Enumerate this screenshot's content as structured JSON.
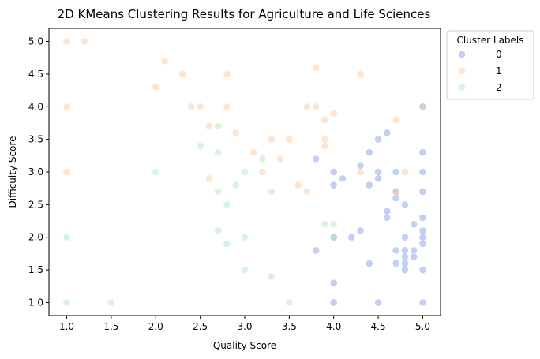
{
  "chart_data": {
    "type": "scatter",
    "title": "2D KMeans Clustering Results for Agriculture and Life Sciences",
    "xlabel": "Quality Score",
    "ylabel": "Difficulty Score",
    "xlim": [
      0.8,
      5.2
    ],
    "ylim": [
      0.8,
      5.2
    ],
    "xticks": [
      "1.0",
      "1.5",
      "2.0",
      "2.5",
      "3.0",
      "3.5",
      "4.0",
      "4.5",
      "5.0"
    ],
    "yticks": [
      "1.0",
      "1.5",
      "2.0",
      "2.5",
      "3.0",
      "3.5",
      "4.0",
      "4.5",
      "5.0"
    ],
    "grid": false,
    "legend": {
      "title": "Cluster Labels",
      "placement": "outside-top-right"
    },
    "series": [
      {
        "name": "0",
        "color": "#7b96ea",
        "points": [
          [
            3.8,
            3.2
          ],
          [
            3.8,
            1.8
          ],
          [
            4.0,
            3.0
          ],
          [
            4.0,
            2.8
          ],
          [
            4.0,
            2.0
          ],
          [
            4.0,
            1.3
          ],
          [
            4.0,
            1.0
          ],
          [
            4.1,
            2.9
          ],
          [
            4.2,
            2.0
          ],
          [
            4.3,
            3.1
          ],
          [
            4.3,
            2.1
          ],
          [
            4.4,
            3.3
          ],
          [
            4.4,
            2.8
          ],
          [
            4.4,
            1.6
          ],
          [
            4.5,
            3.5
          ],
          [
            4.5,
            3.0
          ],
          [
            4.5,
            2.9
          ],
          [
            4.5,
            1.0
          ],
          [
            4.6,
            3.6
          ],
          [
            4.6,
            2.4
          ],
          [
            4.6,
            2.3
          ],
          [
            4.7,
            3.0
          ],
          [
            4.7,
            2.7
          ],
          [
            4.7,
            2.6
          ],
          [
            4.7,
            1.8
          ],
          [
            4.7,
            1.6
          ],
          [
            4.8,
            2.5
          ],
          [
            4.8,
            2.0
          ],
          [
            4.8,
            1.8
          ],
          [
            4.8,
            1.7
          ],
          [
            4.8,
            1.6
          ],
          [
            4.8,
            1.5
          ],
          [
            4.9,
            2.2
          ],
          [
            4.9,
            1.8
          ],
          [
            4.9,
            1.7
          ],
          [
            5.0,
            4.0
          ],
          [
            5.0,
            3.3
          ],
          [
            5.0,
            3.0
          ],
          [
            5.0,
            2.7
          ],
          [
            5.0,
            2.3
          ],
          [
            5.0,
            2.1
          ],
          [
            5.0,
            2.0
          ],
          [
            5.0,
            1.9
          ],
          [
            5.0,
            1.5
          ],
          [
            5.0,
            1.0
          ]
        ]
      },
      {
        "name": "1",
        "color": "#fbc698",
        "points": [
          [
            1.0,
            5.0
          ],
          [
            1.0,
            4.0
          ],
          [
            1.0,
            3.0
          ],
          [
            1.2,
            5.0
          ],
          [
            2.0,
            4.3
          ],
          [
            2.1,
            4.7
          ],
          [
            2.3,
            4.5
          ],
          [
            2.4,
            4.0
          ],
          [
            2.5,
            4.0
          ],
          [
            2.6,
            3.7
          ],
          [
            2.6,
            2.9
          ],
          [
            2.8,
            4.5
          ],
          [
            2.8,
            4.0
          ],
          [
            2.9,
            3.6
          ],
          [
            3.1,
            3.3
          ],
          [
            3.2,
            3.0
          ],
          [
            3.3,
            3.5
          ],
          [
            3.4,
            3.2
          ],
          [
            3.5,
            3.5
          ],
          [
            3.6,
            2.8
          ],
          [
            3.7,
            4.0
          ],
          [
            3.7,
            2.7
          ],
          [
            3.8,
            4.6
          ],
          [
            3.8,
            4.0
          ],
          [
            3.9,
            3.8
          ],
          [
            3.9,
            3.5
          ],
          [
            3.9,
            3.4
          ],
          [
            4.0,
            3.9
          ],
          [
            4.3,
            4.5
          ],
          [
            4.3,
            3.0
          ],
          [
            4.7,
            3.8
          ],
          [
            4.7,
            2.7
          ],
          [
            4.8,
            3.0
          ],
          [
            5.0,
            4.0
          ]
        ]
      },
      {
        "name": "2",
        "color": "#a8e6b8",
        "points": [
          [
            1.0,
            2.0
          ],
          [
            1.0,
            1.0
          ],
          [
            1.5,
            1.0
          ],
          [
            2.0,
            3.0
          ],
          [
            2.5,
            3.4
          ],
          [
            2.7,
            3.7
          ],
          [
            2.7,
            3.3
          ],
          [
            2.7,
            2.7
          ],
          [
            2.7,
            2.1
          ],
          [
            2.8,
            2.5
          ],
          [
            2.8,
            1.9
          ],
          [
            2.9,
            2.8
          ],
          [
            3.0,
            3.0
          ],
          [
            3.0,
            2.0
          ],
          [
            3.0,
            1.5
          ],
          [
            3.2,
            3.2
          ],
          [
            3.3,
            2.7
          ],
          [
            3.3,
            1.4
          ],
          [
            3.5,
            1.0
          ],
          [
            3.9,
            2.2
          ],
          [
            4.0,
            2.2
          ],
          [
            4.0,
            2.0
          ]
        ]
      }
    ]
  }
}
